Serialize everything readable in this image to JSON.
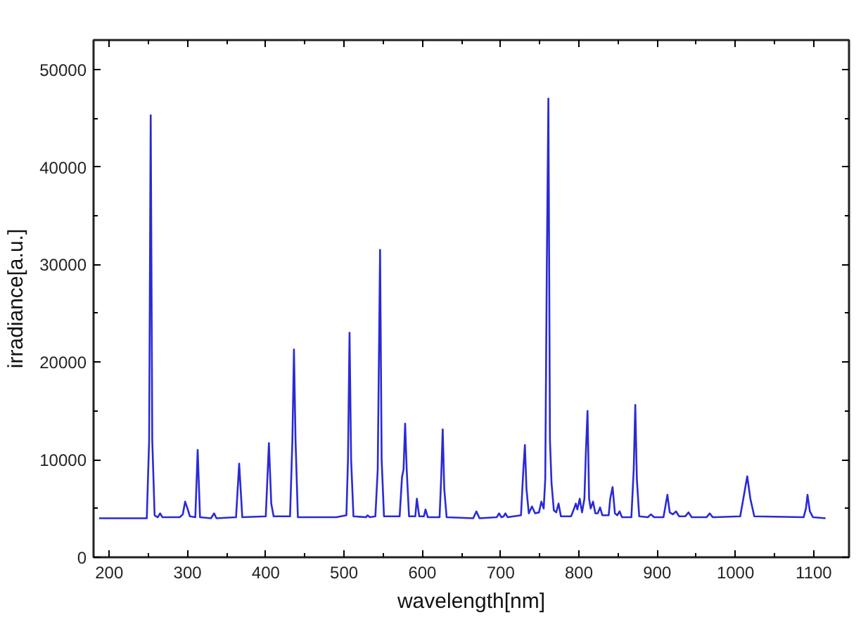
{
  "chart_data": {
    "type": "line",
    "xlabel": "wavelength[nm]",
    "ylabel": "irradiance[a.u.]",
    "xlim": [
      180,
      1145
    ],
    "ylim": [
      0,
      53000
    ],
    "xticks": [
      200,
      300,
      400,
      500,
      600,
      700,
      800,
      900,
      1000,
      1100
    ],
    "yticks": [
      0,
      10000,
      20000,
      30000,
      40000,
      50000
    ],
    "grid": false,
    "marker": "none",
    "line_style": "solid",
    "series": [
      {
        "color": "#2a2ad6",
        "x": [
          187,
          248,
          251,
          253,
          255,
          258,
          262,
          265,
          268,
          290,
          294,
          297,
          300,
          303,
          310,
          313,
          316,
          330,
          334,
          337,
          362,
          366,
          370,
          400,
          404,
          407,
          410,
          431,
          434,
          436,
          438,
          441,
          490,
          503,
          505,
          507,
          509,
          512,
          528,
          530,
          533,
          540,
          543,
          546,
          548,
          551,
          571,
          574,
          576,
          578,
          580,
          583,
          591,
          593,
          596,
          602,
          604,
          607,
          622,
          624,
          626,
          628,
          631,
          665,
          669,
          673,
          695,
          698,
          701,
          704,
          706,
          709,
          726,
          729,
          731,
          733,
          736,
          740,
          744,
          749,
          752,
          755,
          757,
          759,
          761,
          763,
          765,
          768,
          771,
          774,
          777,
          790,
          793,
          796,
          798,
          801,
          804,
          807,
          809,
          811,
          813,
          815,
          818,
          821,
          824,
          827,
          830,
          838,
          840,
          843,
          846,
          849,
          852,
          855,
          867,
          870,
          872,
          874,
          877,
          888,
          892,
          896,
          908,
          910,
          913,
          916,
          920,
          924,
          928,
          936,
          940,
          944,
          963,
          967,
          971,
          1006,
          1010,
          1015,
          1019,
          1024,
          1087,
          1090,
          1092,
          1095,
          1099,
          1115
        ],
        "values": [
          4000,
          4000,
          12000,
          45300,
          12000,
          4300,
          4100,
          4500,
          4100,
          4100,
          4400,
          5700,
          5000,
          4200,
          4100,
          11000,
          4100,
          4000,
          4500,
          4000,
          4100,
          9600,
          4100,
          4200,
          11700,
          5500,
          4200,
          4200,
          12000,
          21300,
          12000,
          4100,
          4100,
          4300,
          10000,
          23000,
          10000,
          4200,
          4100,
          4300,
          4100,
          4200,
          9000,
          31500,
          10000,
          4200,
          4200,
          8200,
          9000,
          13700,
          9000,
          4200,
          4200,
          6000,
          4200,
          4200,
          4900,
          4100,
          4100,
          8000,
          13100,
          7000,
          4100,
          4000,
          4700,
          4000,
          4100,
          4500,
          4100,
          4200,
          4500,
          4100,
          4300,
          9000,
          11500,
          7000,
          4500,
          5200,
          4500,
          4600,
          5700,
          5000,
          8000,
          30000,
          47000,
          12000,
          7600,
          4800,
          4600,
          5500,
          4200,
          4200,
          4800,
          5500,
          4900,
          6000,
          4600,
          6000,
          11000,
          15000,
          6000,
          5000,
          5700,
          4500,
          4500,
          5100,
          4300,
          4300,
          6000,
          7200,
          4500,
          4300,
          4700,
          4100,
          4100,
          9000,
          15600,
          8000,
          4200,
          4100,
          4400,
          4100,
          4100,
          5000,
          6400,
          4600,
          4400,
          4700,
          4200,
          4200,
          4600,
          4100,
          4100,
          4500,
          4100,
          4200,
          6000,
          8300,
          6000,
          4200,
          4100,
          5000,
          6400,
          4700,
          4100,
          4000
        ]
      }
    ]
  }
}
